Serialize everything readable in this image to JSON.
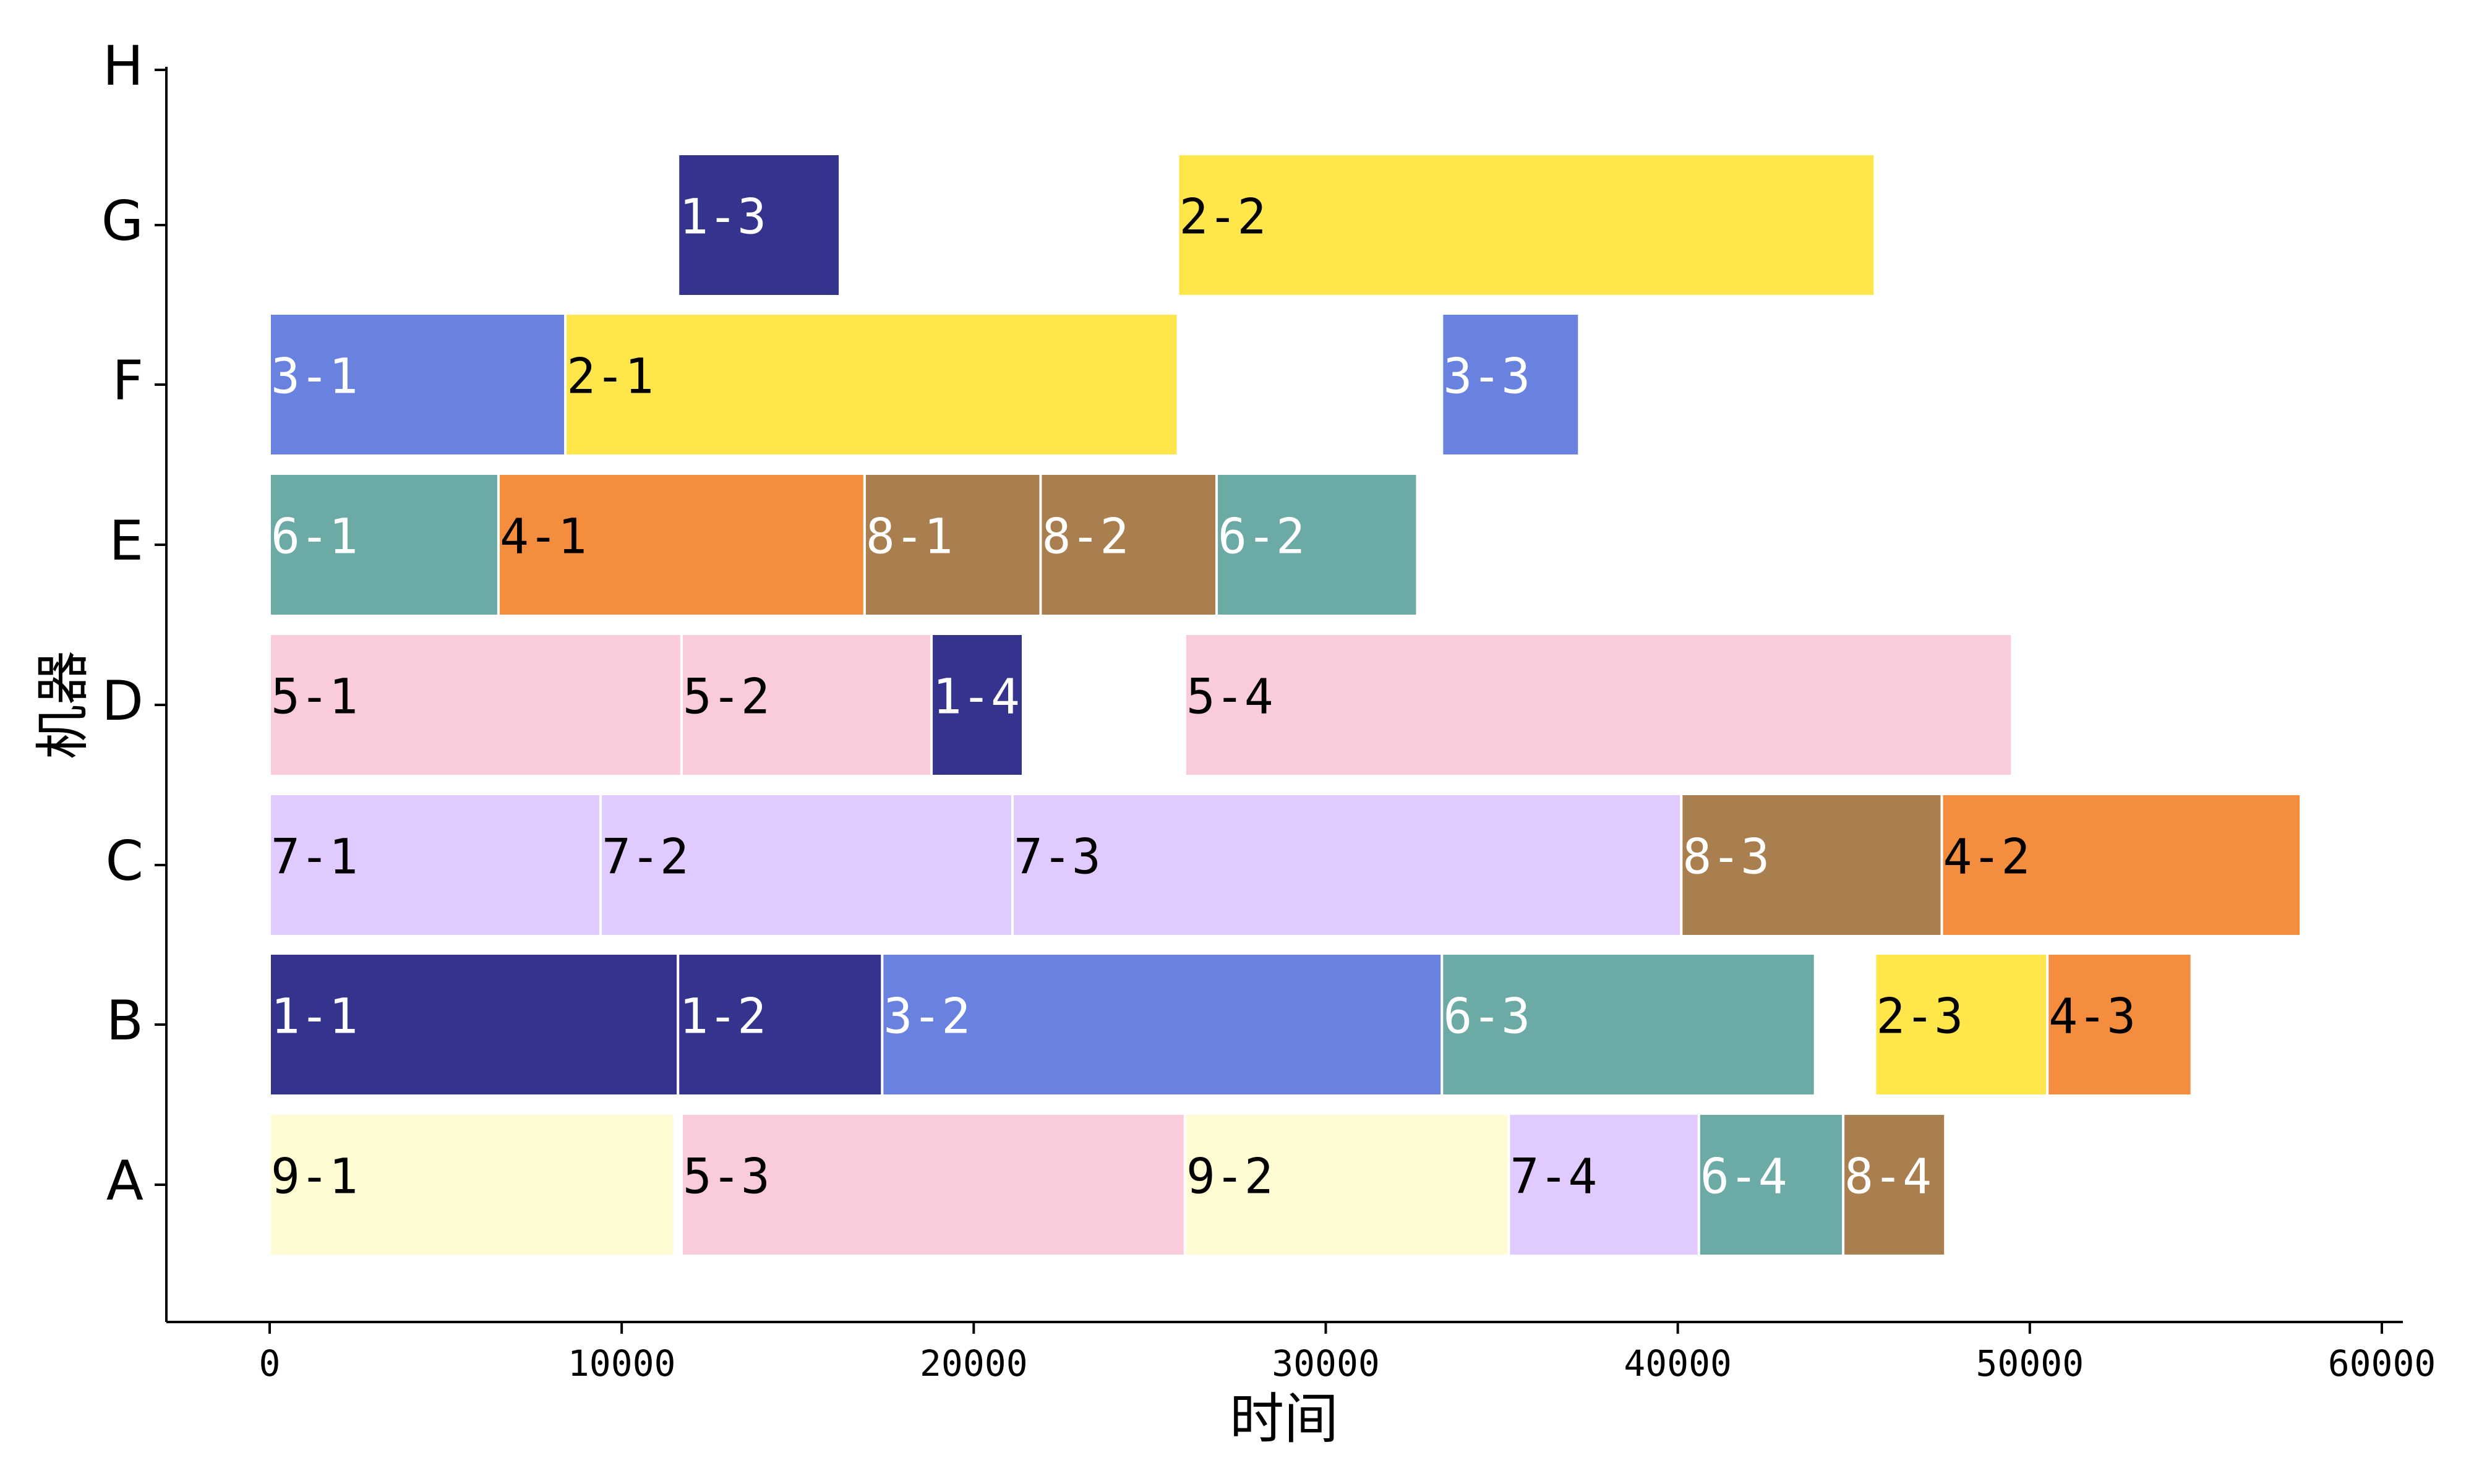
{
  "chart_data": {
    "type": "gantt",
    "title": "",
    "xlabel": "时间",
    "ylabel": "机器",
    "xlim": [
      -3000,
      60500
    ],
    "xticks": [
      0,
      10000,
      20000,
      30000,
      40000,
      50000,
      60000
    ],
    "machines": [
      "A",
      "B",
      "C",
      "D",
      "E",
      "F",
      "G",
      "H"
    ],
    "colors": {
      "1": "#34338d",
      "2": "#ffe64b",
      "3": "#6a82df",
      "4": "#f48d3d",
      "5": "#f9cbdb",
      "6": "#6caba5",
      "7": "#e1caff",
      "8": "#aa7f4f",
      "9": "#fffbd2"
    },
    "label_colors": {
      "1": "#ffffff",
      "2": "#000000",
      "3": "#ffffff",
      "4": "#000000",
      "5": "#000000",
      "6": "#ffffff",
      "7": "#000000",
      "8": "#ffffff",
      "9": "#000000"
    },
    "tasks": [
      {
        "machine": "A",
        "label": "9-1",
        "job": "9",
        "start": 0,
        "end": 11500
      },
      {
        "machine": "A",
        "label": "5-3",
        "job": "5",
        "start": 11700,
        "end": 26000
      },
      {
        "machine": "A",
        "label": "9-2",
        "job": "9",
        "start": 26000,
        "end": 35200
      },
      {
        "machine": "A",
        "label": "7-4",
        "job": "7",
        "start": 35200,
        "end": 40600
      },
      {
        "machine": "A",
        "label": "6-4",
        "job": "6",
        "start": 40600,
        "end": 44700
      },
      {
        "machine": "A",
        "label": "8-4",
        "job": "8",
        "start": 44700,
        "end": 47600
      },
      {
        "machine": "B",
        "label": "1-1",
        "job": "1",
        "start": 0,
        "end": 11600
      },
      {
        "machine": "B",
        "label": "1-2",
        "job": "1",
        "start": 11600,
        "end": 17400
      },
      {
        "machine": "B",
        "label": "3-2",
        "job": "3",
        "start": 17400,
        "end": 33300
      },
      {
        "machine": "B",
        "label": "6-3",
        "job": "6",
        "start": 33300,
        "end": 43900
      },
      {
        "machine": "B",
        "label": "2-3",
        "job": "2",
        "start": 45600,
        "end": 50500
      },
      {
        "machine": "B",
        "label": "4-3",
        "job": "4",
        "start": 50500,
        "end": 54600
      },
      {
        "machine": "C",
        "label": "7-1",
        "job": "7",
        "start": 0,
        "end": 9400
      },
      {
        "machine": "C",
        "label": "7-2",
        "job": "7",
        "start": 9400,
        "end": 21100
      },
      {
        "machine": "C",
        "label": "7-3",
        "job": "7",
        "start": 21100,
        "end": 40100
      },
      {
        "machine": "C",
        "label": "8-3",
        "job": "8",
        "start": 40100,
        "end": 47500
      },
      {
        "machine": "C",
        "label": "4-2",
        "job": "4",
        "start": 47500,
        "end": 57700
      },
      {
        "machine": "D",
        "label": "5-1",
        "job": "5",
        "start": 0,
        "end": 11700
      },
      {
        "machine": "D",
        "label": "5-2",
        "job": "5",
        "start": 11700,
        "end": 18800
      },
      {
        "machine": "D",
        "label": "1-4",
        "job": "1",
        "start": 18800,
        "end": 21400
      },
      {
        "machine": "D",
        "label": "5-4",
        "job": "5",
        "start": 26000,
        "end": 49500
      },
      {
        "machine": "E",
        "label": "6-1",
        "job": "6",
        "start": 0,
        "end": 6500
      },
      {
        "machine": "E",
        "label": "4-1",
        "job": "4",
        "start": 6500,
        "end": 16900
      },
      {
        "machine": "E",
        "label": "8-1",
        "job": "8",
        "start": 16900,
        "end": 21900
      },
      {
        "machine": "E",
        "label": "8-2",
        "job": "8",
        "start": 21900,
        "end": 26900
      },
      {
        "machine": "E",
        "label": "6-2",
        "job": "6",
        "start": 26900,
        "end": 32600
      },
      {
        "machine": "F",
        "label": "3-1",
        "job": "3",
        "start": 0,
        "end": 8400
      },
      {
        "machine": "F",
        "label": "2-1",
        "job": "2",
        "start": 8400,
        "end": 25800
      },
      {
        "machine": "F",
        "label": "3-3",
        "job": "3",
        "start": 33300,
        "end": 37200
      },
      {
        "machine": "G",
        "label": "1-3",
        "job": "1",
        "start": 11600,
        "end": 16200
      },
      {
        "machine": "G",
        "label": "2-2",
        "job": "2",
        "start": 25800,
        "end": 45600
      }
    ]
  }
}
